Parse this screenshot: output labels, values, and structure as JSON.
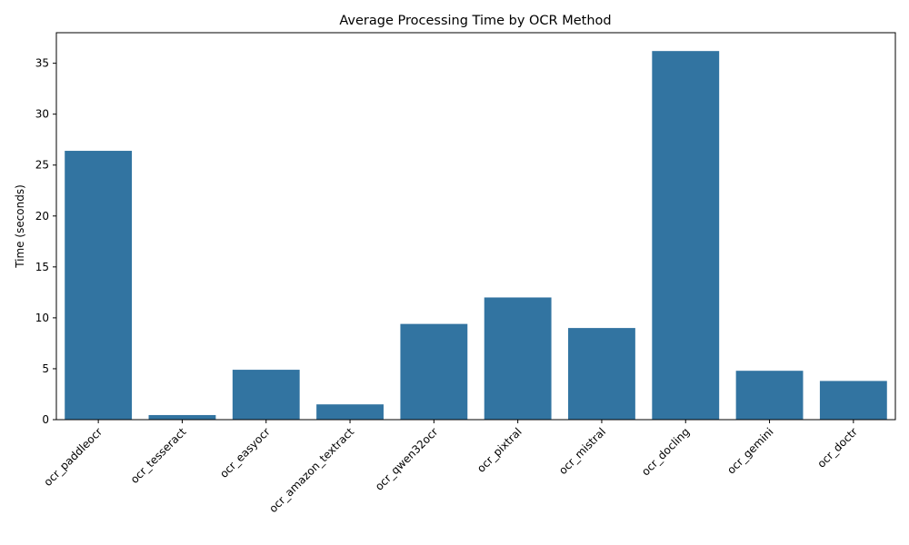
{
  "chart_data": {
    "type": "bar",
    "title": "Average Processing Time by OCR Method",
    "xlabel": "",
    "ylabel": "Time (seconds)",
    "categories": [
      "ocr_paddleocr",
      "ocr_tesseract",
      "ocr_easyocr",
      "ocr_amazon_textract",
      "ocr_qwen32ocr",
      "ocr_pixtral",
      "ocr_mistral",
      "ocr_docling",
      "ocr_gemini",
      "ocr_doctr"
    ],
    "values": [
      26.4,
      0.45,
      4.9,
      1.5,
      9.4,
      12.0,
      9.0,
      36.2,
      4.8,
      3.8
    ],
    "yticks": [
      0,
      5,
      10,
      15,
      20,
      25,
      30,
      35
    ],
    "ylim": [
      0,
      38
    ],
    "bar_color": "#3274a1",
    "grid": false,
    "xtick_rotation": 45
  }
}
